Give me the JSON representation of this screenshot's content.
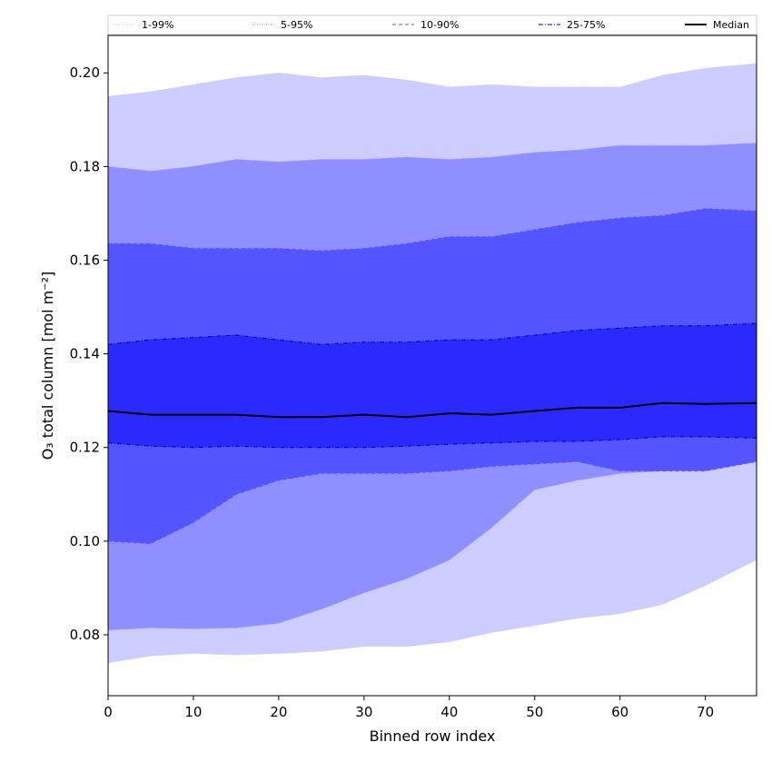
{
  "chart_data": {
    "type": "area",
    "xlabel": "Binned row index",
    "ylabel": "O₃ total column [mol m⁻²]",
    "xlim": [
      0,
      76
    ],
    "ylim": [
      0.067,
      0.208
    ],
    "xticks": [
      0,
      10,
      20,
      30,
      40,
      50,
      60,
      70
    ],
    "yticks": [
      0.08,
      0.1,
      0.12,
      0.14,
      0.16,
      0.18,
      0.2
    ],
    "ytick_labels": [
      "0.08",
      "0.10",
      "0.12",
      "0.14",
      "0.16",
      "0.18",
      "0.20"
    ],
    "x": [
      0,
      5,
      10,
      15,
      20,
      25,
      30,
      35,
      40,
      45,
      50,
      55,
      60,
      65,
      70,
      76
    ],
    "bands": [
      {
        "name": "1-99%",
        "color": "#ccccff",
        "line_color": "#ccccff",
        "dash": "1,2",
        "lower": [
          0.074,
          0.0755,
          0.076,
          0.0757,
          0.076,
          0.0765,
          0.0775,
          0.0775,
          0.0785,
          0.0805,
          0.082,
          0.0835,
          0.0845,
          0.0865,
          0.0905,
          0.096
        ],
        "upper": [
          0.195,
          0.196,
          0.1975,
          0.199,
          0.2,
          0.199,
          0.1995,
          0.1985,
          0.197,
          0.1975,
          0.197,
          0.197,
          0.197,
          0.1995,
          0.201,
          0.202
        ]
      },
      {
        "name": "5-95%",
        "color": "#8f8fff",
        "line_color": "#8f8fff",
        "dash": "1,1.5",
        "lower": [
          0.081,
          0.0815,
          0.0813,
          0.0815,
          0.0825,
          0.0855,
          0.089,
          0.092,
          0.096,
          0.103,
          0.111,
          0.113,
          0.1145,
          0.115,
          0.115,
          0.117
        ],
        "upper": [
          0.18,
          0.179,
          0.18,
          0.1815,
          0.181,
          0.1815,
          0.1815,
          0.182,
          0.1815,
          0.182,
          0.183,
          0.1835,
          0.1845,
          0.1845,
          0.1845,
          0.185
        ]
      },
      {
        "name": "10-90%",
        "color": "#5555ff",
        "line_color": "#5555ff",
        "dash": "4,3",
        "lower": [
          0.1,
          0.0995,
          0.104,
          0.11,
          0.113,
          0.1145,
          0.1145,
          0.1145,
          0.115,
          0.116,
          0.1165,
          0.117,
          0.115,
          0.115,
          0.115,
          0.117
        ],
        "upper": [
          0.1635,
          0.1635,
          0.1625,
          0.1625,
          0.1625,
          0.162,
          0.1625,
          0.1635,
          0.165,
          0.165,
          0.1665,
          0.168,
          0.169,
          0.1695,
          0.171,
          0.1705
        ]
      },
      {
        "name": "25-75%",
        "color": "#2a2aff",
        "line_color": "#0000b3",
        "dash": "5,2,1,2",
        "lower": [
          0.121,
          0.1203,
          0.12,
          0.1203,
          0.12,
          0.12,
          0.12,
          0.1203,
          0.1207,
          0.121,
          0.1213,
          0.1213,
          0.1217,
          0.1223,
          0.1223,
          0.122
        ],
        "upper": [
          0.142,
          0.143,
          0.1435,
          0.144,
          0.143,
          0.142,
          0.1425,
          0.1425,
          0.143,
          0.143,
          0.144,
          0.145,
          0.1455,
          0.146,
          0.146,
          0.1465
        ]
      }
    ],
    "median": {
      "name": "Median",
      "color": "#000000",
      "values": [
        0.1278,
        0.127,
        0.127,
        0.127,
        0.1265,
        0.1265,
        0.127,
        0.1265,
        0.1273,
        0.127,
        0.1278,
        0.1285,
        0.1285,
        0.1295,
        0.1293,
        0.1295
      ]
    },
    "legend": {
      "placement": "top",
      "entries": [
        "1-99%",
        "5-95%",
        "10-90%",
        "25-75%",
        "Median"
      ]
    }
  }
}
